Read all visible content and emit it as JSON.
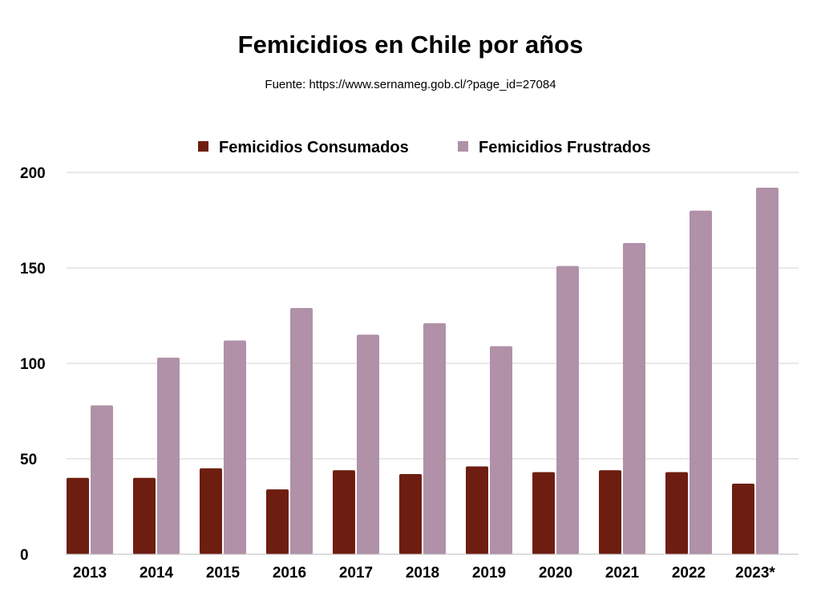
{
  "title": "Femicidios en Chile por años",
  "subtitle": "Fuente:  https://www.sernameg.gob.cl/?page_id=27084",
  "chart_data": {
    "type": "bar",
    "title": "Femicidios en Chile por años",
    "subtitle": "Fuente:  https://www.sernameg.gob.cl/?page_id=27084",
    "xlabel": "",
    "ylabel": "",
    "categories": [
      "2013",
      "2014",
      "2015",
      "2016",
      "2017",
      "2018",
      "2019",
      "2020",
      "2021",
      "2022",
      "2023*"
    ],
    "series": [
      {
        "name": "Femicidios Consumados",
        "color": "#6e1e10",
        "values": [
          40,
          40,
          45,
          34,
          44,
          42,
          46,
          43,
          44,
          43,
          37
        ]
      },
      {
        "name": "Femicidios Frustrados",
        "color": "#b091a8",
        "values": [
          78,
          103,
          112,
          129,
          115,
          121,
          109,
          151,
          163,
          180,
          192
        ]
      }
    ],
    "ylim": [
      0,
      200
    ],
    "yticks": [
      0,
      50,
      100,
      150,
      200
    ],
    "grid": true,
    "gridColor": "#d0d0d0",
    "legend": "top-center"
  }
}
